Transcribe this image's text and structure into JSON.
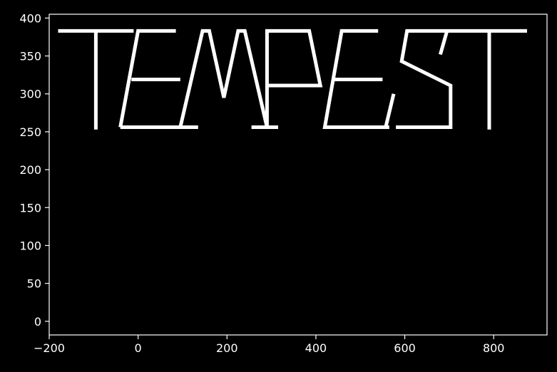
{
  "chart_data": {
    "type": "line",
    "title": "",
    "xlabel": "",
    "ylabel": "",
    "xlim": [
      -200,
      920
    ],
    "ylim": [
      -18,
      405
    ],
    "x_ticks": [
      -200,
      0,
      200,
      400,
      600,
      800
    ],
    "y_ticks": [
      0,
      50,
      100,
      150,
      200,
      250,
      300,
      350,
      400
    ],
    "grid": false,
    "legend": "none",
    "background": "#000000",
    "line_color": "#ffffff",
    "text": "TEMPEST",
    "series": [
      {
        "points": [
          [
            -180,
            383
          ],
          [
            -10,
            383
          ]
        ]
      },
      {
        "points": [
          [
            -95,
            383
          ],
          [
            -95,
            253
          ]
        ]
      },
      {
        "points": [
          [
            -40,
            256
          ],
          [
            135,
            256
          ]
        ]
      },
      {
        "points": [
          [
            -40,
            256
          ],
          [
            0,
            383
          ],
          [
            85,
            383
          ]
        ]
      },
      {
        "points": [
          [
            -15,
            319
          ],
          [
            95,
            319
          ]
        ]
      },
      {
        "points": [
          [
            95,
            256
          ],
          [
            145,
            383
          ],
          [
            160,
            383
          ],
          [
            193,
            295
          ],
          [
            225,
            383
          ],
          [
            240,
            383
          ],
          [
            290,
            256
          ]
        ]
      },
      {
        "points": [
          [
            255,
            256
          ],
          [
            315,
            256
          ]
        ]
      },
      {
        "points": [
          [
            290,
            256
          ],
          [
            290,
            383
          ],
          [
            385,
            383
          ],
          [
            410,
            311
          ],
          [
            290,
            311
          ]
        ]
      },
      {
        "points": [
          [
            565,
            256
          ],
          [
            420,
            256
          ],
          [
            458,
            383
          ],
          [
            540,
            383
          ]
        ]
      },
      {
        "points": [
          [
            440,
            319
          ],
          [
            550,
            319
          ]
        ]
      },
      {
        "points": [
          [
            580,
            256
          ],
          [
            703,
            256
          ],
          [
            703,
            311
          ],
          [
            593,
            343
          ],
          [
            605,
            383
          ],
          [
            875,
            383
          ]
        ]
      },
      {
        "points": [
          [
            557,
            256
          ],
          [
            575,
            300
          ]
        ]
      },
      {
        "points": [
          [
            680,
            352
          ],
          [
            695,
            383
          ]
        ]
      },
      {
        "points": [
          [
            790,
            383
          ],
          [
            790,
            253
          ]
        ]
      }
    ]
  }
}
